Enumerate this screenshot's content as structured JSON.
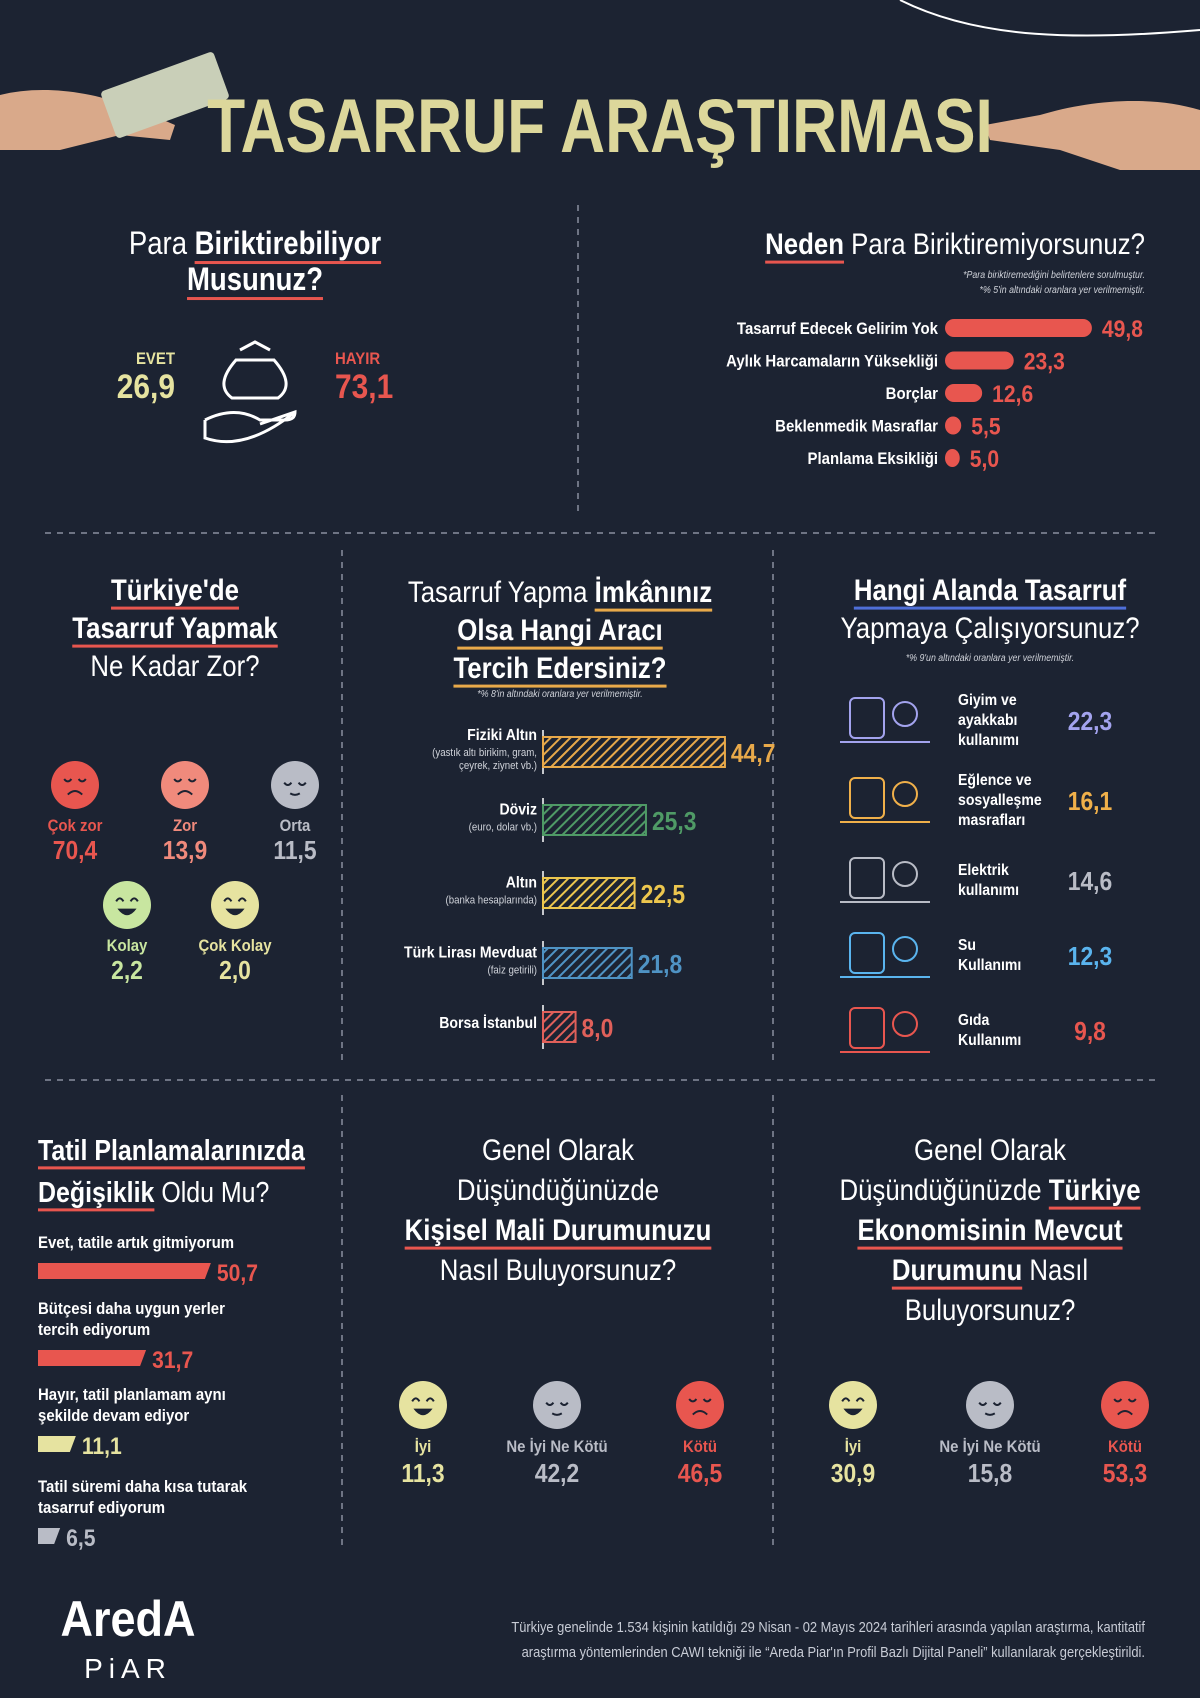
{
  "title": "TASARRUF ARAŞTIRMASI",
  "savings": {
    "title": [
      [
        {
          "text": "Para ",
          "bold": false
        },
        {
          "text": "Biriktirebiliyor",
          "bold": true
        }
      ],
      [
        {
          "text": "Musunuz?",
          "bold": true
        }
      ]
    ],
    "underline": "#e8564f",
    "items": [
      {
        "label": "EVET",
        "value": 26.9,
        "value_label": "26,9",
        "color": "#e6e3a0"
      },
      {
        "label": "HAYIR",
        "value": 73.1,
        "value_label": "73,1",
        "color": "#e8564f"
      }
    ]
  },
  "reasons": {
    "title": [
      [
        {
          "text": "Neden",
          "bold": true
        },
        {
          "text": " Para Biriktiremiyorsunuz?",
          "bold": false
        }
      ]
    ],
    "underline": "#e8564f",
    "notes": [
      "*Para biriktiremediğini belirtenlere sorulmuştur.",
      "*% 5'in altındaki oranlara yer verilmemiştir."
    ],
    "color": "#e8564f",
    "items": [
      {
        "label": "Tasarruf Edecek Gelirim Yok",
        "value": 49.8,
        "value_label": "49,8"
      },
      {
        "label": "Aylık Harcamaların Yüksekliği",
        "value": 23.3,
        "value_label": "23,3"
      },
      {
        "label": "Borçlar",
        "value": 12.6,
        "value_label": "12,6"
      },
      {
        "label": "Beklenmedik Masraflar",
        "value": 5.5,
        "value_label": "5,5"
      },
      {
        "label": "Planlama Eksikliği",
        "value": 5.0,
        "value_label": "5,0"
      }
    ]
  },
  "difficulty": {
    "title": [
      [
        {
          "text": "Türkiye'de",
          "bold": true
        }
      ],
      [
        {
          "text": "Tasarruf Yapmak",
          "bold": true
        }
      ],
      [
        {
          "text": "Ne Kadar Zor?",
          "bold": false
        }
      ]
    ],
    "underline": "#e8564f",
    "items": [
      {
        "label": "Çok zor",
        "value": 70.4,
        "value_label": "70,4",
        "color": "#e8564f",
        "face": "sad"
      },
      {
        "label": "Zor",
        "value": 13.9,
        "value_label": "13,9",
        "color": "#f08a7c",
        "face": "sad"
      },
      {
        "label": "Orta",
        "value": 11.5,
        "value_label": "11,5",
        "color": "#b9bcc6",
        "face": "neutral"
      },
      {
        "label": "Kolay",
        "value": 2.2,
        "value_label": "2,2",
        "color": "#c8e6a0",
        "face": "happy"
      },
      {
        "label": "Çok Kolay",
        "value": 2.0,
        "value_label": "2,0",
        "color": "#e6e3a0",
        "face": "happy"
      }
    ]
  },
  "instrument": {
    "title": [
      [
        {
          "text": "Tasarruf Yapma ",
          "bold": false
        },
        {
          "text": "İmkânınız",
          "bold": true
        }
      ],
      [
        {
          "text": "Olsa Hangi Aracı",
          "bold": true
        }
      ],
      [
        {
          "text": "Tercih Edersiniz?",
          "bold": true
        }
      ]
    ],
    "underline": "#e8a94a",
    "note": "*% 8'in altındaki oranlara yer verilmemiştir.",
    "items": [
      {
        "label": "Fiziki Altın",
        "note": [
          "(yastık altı birikim, gram,",
          "çeyrek, ziynet vb.)"
        ],
        "value": 44.7,
        "value_label": "44,7",
        "color": "#e8a94a"
      },
      {
        "label": "Döviz",
        "note": [
          "(euro, dolar vb.)"
        ],
        "value": 25.3,
        "value_label": "25,3",
        "color": "#4f9a66"
      },
      {
        "label": "Altın",
        "note": [
          "(banka hesaplarında)"
        ],
        "value": 22.5,
        "value_label": "22,5",
        "color": "#ecc64e"
      },
      {
        "label": "Türk Lirası Mevduat",
        "note": [
          "(faiz getirili)"
        ],
        "value": 21.8,
        "value_label": "21,8",
        "color": "#4f93c4"
      },
      {
        "label": "Borsa İstanbul",
        "value": 8.0,
        "value_label": "8,0",
        "color": "#e0605a"
      }
    ]
  },
  "area": {
    "title": [
      [
        {
          "text": "Hangi Alanda Tasarruf",
          "bold": true
        }
      ],
      [
        {
          "text": "Yapmaya Çalışıyorsunuz?",
          "bold": false
        }
      ]
    ],
    "underline": "#4f6fd8",
    "note": "*% 9'un altındaki oranlara yer verilmemiştir.",
    "items": [
      {
        "label": [
          "Giyim ve",
          "ayakkabı",
          "kullanımı"
        ],
        "value": 22.3,
        "value_label": "22,3",
        "color": "#a3a3ee"
      },
      {
        "label": [
          "Eğlence ve",
          "sosyalleşme",
          "masrafları"
        ],
        "value": 16.1,
        "value_label": "16,1",
        "color": "#f0b04a"
      },
      {
        "label": [
          "Elektrik",
          "kullanımı"
        ],
        "value": 14.6,
        "value_label": "14,6",
        "color": "#b9bcc6"
      },
      {
        "label": [
          "Su",
          "Kullanımı"
        ],
        "value": 12.3,
        "value_label": "12,3",
        "color": "#5ab4ee"
      },
      {
        "label": [
          "Gıda",
          "Kullanımı"
        ],
        "value": 9.8,
        "value_label": "9,8",
        "color": "#e8564f"
      }
    ]
  },
  "vacation": {
    "title": [
      [
        {
          "text": "Tatil Planlamalarınızda",
          "bold": true
        }
      ],
      [
        {
          "text": "Değişiklik",
          "bold": true
        },
        {
          "text": " Oldu Mu?",
          "bold": false
        }
      ]
    ],
    "underline": "#e8564f",
    "items": [
      {
        "label": [
          "Evet, tatile artık gitmiyorum"
        ],
        "value": 50.7,
        "value_label": "50,7",
        "color": "#e8564f"
      },
      {
        "label": [
          "Bütçesi daha uygun yerler",
          "tercih ediyorum"
        ],
        "value": 31.7,
        "value_label": "31,7",
        "color": "#e8564f"
      },
      {
        "label": [
          "Hayır, tatil planlamam aynı",
          "şekilde devam ediyor"
        ],
        "value": 11.1,
        "value_label": "11,1",
        "color": "#e6e3a0"
      },
      {
        "label": [
          "Tatil süremi daha kısa tutarak",
          "tasarruf ediyorum"
        ],
        "value": 6.5,
        "value_label": "6,5",
        "color": "#b9bcc6"
      }
    ]
  },
  "personal": {
    "title": [
      [
        {
          "text": "Genel Olarak",
          "bold": false
        }
      ],
      [
        {
          "text": "Düşündüğünüzde",
          "bold": false
        }
      ],
      [
        {
          "text": "Kişisel Mali Durumunuzu",
          "bold": true
        }
      ],
      [
        {
          "text": "Nasıl Buluyorsunuz?",
          "bold": false
        }
      ]
    ],
    "underline": "#e8564f",
    "items": [
      {
        "label": "İyi",
        "value": 11.3,
        "value_label": "11,3",
        "color": "#e6e3a0",
        "face": "happy"
      },
      {
        "label": "Ne İyi Ne Kötü",
        "value": 42.2,
        "value_label": "42,2",
        "color": "#b9bcc6",
        "face": "neutral"
      },
      {
        "label": "Kötü",
        "value": 46.5,
        "value_label": "46,5",
        "color": "#e8564f",
        "face": "sad"
      }
    ]
  },
  "economy": {
    "title": [
      [
        {
          "text": "Genel Olarak",
          "bold": false
        }
      ],
      [
        {
          "text": "Düşündüğünüzde ",
          "bold": false
        },
        {
          "text": "Türkiye",
          "bold": true
        }
      ],
      [
        {
          "text": "Ekonomisinin Mevcut",
          "bold": true
        }
      ],
      [
        {
          "text": "Durumunu",
          "bold": true
        },
        {
          "text": " Nasıl",
          "bold": false
        }
      ],
      [
        {
          "text": "Buluyorsunuz?",
          "bold": false
        }
      ]
    ],
    "underline": "#e8564f",
    "items": [
      {
        "label": "İyi",
        "value": 30.9,
        "value_label": "30,9",
        "color": "#e6e3a0",
        "face": "happy"
      },
      {
        "label": "Ne İyi Ne Kötü",
        "value": 15.8,
        "value_label": "15,8",
        "color": "#b9bcc6",
        "face": "neutral"
      },
      {
        "label": "Kötü",
        "value": 53.3,
        "value_label": "53,3",
        "color": "#e8564f",
        "face": "sad"
      }
    ]
  },
  "footer": {
    "logo": "AredA",
    "logo_sub": "PiAR",
    "note": [
      "Türkiye genelinde 1.534 kişinin katıldığı 29 Nisan - 02 Mayıs 2024 tarihleri arasında yapılan araştırma, kantitatif",
      "araştırma yöntemlerinden CAWI tekniği ile “Areda Piar'ın Profil Bazlı Dijital Paneli” kullanılarak gerçekleştirildi."
    ]
  }
}
